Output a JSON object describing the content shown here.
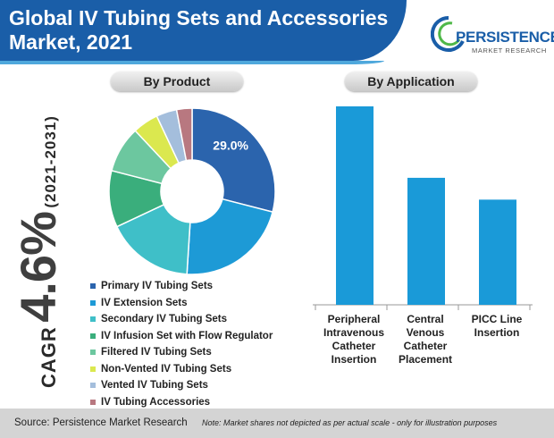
{
  "header": {
    "title_line1": "Global IV Tubing Sets and Accessories",
    "title_line2": "Market, 2021"
  },
  "logo": {
    "name": "PERSISTENCE",
    "sub": "MARKET RESEARCH"
  },
  "cagr": {
    "label": "CAGR",
    "value": "4.6%",
    "period": "(2021-2031)"
  },
  "footer": {
    "source": "Source: Persistence Market Research",
    "note": "Note: Market shares not depicted as per actual scale - only for illustration purposes"
  },
  "colors": {
    "banner": "#1a5ea8",
    "bar": "#1a9ad8"
  },
  "chart_data": [
    {
      "type": "pie",
      "title": "By Product",
      "donut": true,
      "slices": [
        {
          "name": "Primary IV Tubing Sets",
          "value": 29.0,
          "label": "29.0%",
          "color": "#2b64ad"
        },
        {
          "name": "IV Extension Sets",
          "value": 22.0,
          "label": "",
          "color": "#1d9ad6"
        },
        {
          "name": "Secondary IV Tubing Sets",
          "value": 17.0,
          "label": "",
          "color": "#3fbfc8"
        },
        {
          "name": "IV Infusion Set with Flow Regulator",
          "value": 11.0,
          "label": "",
          "color": "#3aae7c"
        },
        {
          "name": "Filtered IV Tubing Sets",
          "value": 9.0,
          "label": "",
          "color": "#6cc79f"
        },
        {
          "name": "Non-Vented IV Tubing Sets",
          "value": 5.0,
          "label": "",
          "color": "#dbe84f"
        },
        {
          "name": "Vented IV Tubing Sets",
          "value": 4.0,
          "label": "",
          "color": "#a4bedc"
        },
        {
          "name": "IV Tubing Accessories",
          "value": 3.0,
          "label": "",
          "color": "#b87880"
        }
      ],
      "legend_position": "bottom"
    },
    {
      "type": "bar",
      "title": "By Application",
      "categories": [
        [
          "Peripheral",
          "Intravenous",
          "Catheter",
          "Insertion"
        ],
        [
          "Central",
          "Venous",
          "Catheter",
          "Placement"
        ],
        [
          "PICC Line",
          "Insertion"
        ]
      ],
      "values": [
        100,
        64,
        53
      ],
      "ylim": [
        0,
        100
      ],
      "grid": false,
      "color": "#1a9ad8"
    }
  ]
}
